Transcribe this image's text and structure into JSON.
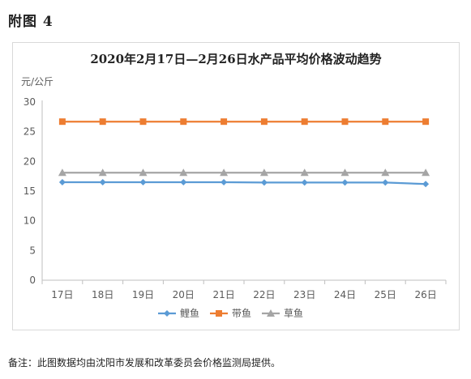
{
  "figure_label": "附图 4",
  "footnote": "备注：此图数据均由沈阳市发展和改革委员会价格监测局提供。",
  "chart_data": {
    "type": "line",
    "title": "2020年2月17日—2月26日水产品平均价格波动趋势",
    "ylabel": "元/公斤",
    "xlabel": "",
    "categories": [
      "17日",
      "18日",
      "19日",
      "20日",
      "21日",
      "22日",
      "23日",
      "24日",
      "25日",
      "26日"
    ],
    "ylim": [
      0,
      30
    ],
    "yticks": [
      0,
      5,
      10,
      15,
      20,
      25,
      30
    ],
    "grid": false,
    "legend_position": "bottom",
    "series": [
      {
        "name": "鲤鱼",
        "color": "#5b9bd5",
        "marker": "diamond",
        "values": [
          16.5,
          16.5,
          16.5,
          16.5,
          16.5,
          16.45,
          16.45,
          16.45,
          16.45,
          16.2
        ]
      },
      {
        "name": "带鱼",
        "color": "#ed7d31",
        "marker": "square",
        "values": [
          26.7,
          26.7,
          26.7,
          26.7,
          26.7,
          26.7,
          26.7,
          26.7,
          26.7,
          26.7
        ]
      },
      {
        "name": "草鱼",
        "color": "#a5a5a5",
        "marker": "triangle",
        "values": [
          18.1,
          18.1,
          18.1,
          18.1,
          18.1,
          18.1,
          18.1,
          18.1,
          18.1,
          18.1
        ]
      }
    ]
  }
}
